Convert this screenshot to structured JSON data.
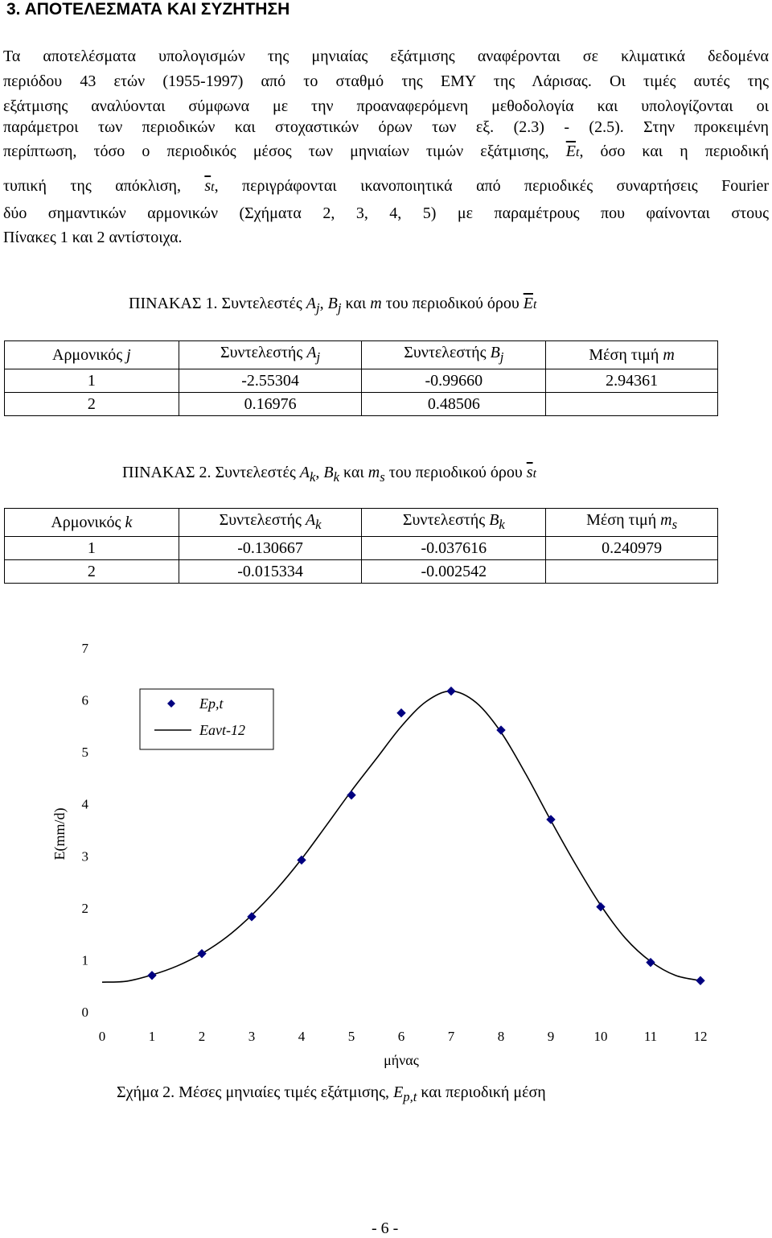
{
  "heading": "3. ΑΠΟΤΕΛΕΣΜΑΤΑ ΚΑΙ ΣΥΖΗΤΗΣΗ",
  "paragraph": {
    "line1": "Τα αποτελέσματα υπολογισμών της μηνιαίας εξάτμισης αναφέρονται σε κλιματικά δεδομένα",
    "line2": "περιόδου 43 ετών (1955-1997) από το σταθμό της ΕΜΥ της Λάρισας. Οι τιμές αυτές της",
    "line3": "εξάτμισης αναλύονται σύμφωνα με την προαναφερόμενη μεθοδολογία και υπολογίζονται οι",
    "line4": "παράμετροι των περιοδικών και στοχαστικών όρων των εξ. (2.3) - (2.5). Στην προκειμένη",
    "line5a": "περίπτωση, τόσο ο περιοδικός μέσος των μηνιαίων τιμών εξάτμισης,",
    "line5sym": "E",
    "line5sub": "t",
    "line5b": ", όσο και η περιοδική",
    "line6a": "τυπική της απόκλιση,",
    "line6sym": "s",
    "line6sub": "t",
    "line6b": ", περιγράφονται ικανοποιητικά από περιοδικές συναρτήσεις Fourier",
    "line7": "δύο σημαντικών αρμονικών (Σχήματα 2, 3, 4, 5) με παραμέτρους που φαίνονται στους",
    "line8": "Πίνακες 1 και 2 αντίστοιχα."
  },
  "table1": {
    "caption_a": "ΠΙΝΑΚΑΣ 1. Συντελεστές ",
    "caption_A": "A",
    "caption_Asub": "j",
    "caption_comma": ", ",
    "caption_B": "B",
    "caption_Bsub": "j",
    "caption_mid": " και ",
    "caption_m": "m",
    "caption_b": " του περιοδικού όρου ",
    "caption_sym": "E",
    "caption_symsub": "t",
    "headers": {
      "h1": "Αρμονικός ",
      "h1var": "j",
      "h2": "Συντελεστής ",
      "h2var": "A",
      "h2sub": "j",
      "h3": "Συντελεστής ",
      "h3var": "B",
      "h3sub": "j",
      "h4": "Μέση τιμή ",
      "h4var": "m"
    },
    "rows": [
      [
        "1",
        "-2.55304",
        "-0.99660",
        "2.94361"
      ],
      [
        "2",
        "0.16976",
        "0.48506",
        ""
      ]
    ]
  },
  "table2": {
    "caption_a": "ΠΙΝΑΚΑΣ 2. Συντελεστές ",
    "caption_A": "A",
    "caption_Asub": "k",
    "caption_comma": ", ",
    "caption_B": "B",
    "caption_Bsub": "k",
    "caption_mid": " και ",
    "caption_m": "m",
    "caption_msub": "s",
    "caption_b": " του περιοδικού όρου ",
    "caption_sym": "s",
    "caption_symsub": "t",
    "headers": {
      "h1": "Αρμονικός ",
      "h1var": "k",
      "h2": "Συντελεστής ",
      "h2var": "A",
      "h2sub": "k",
      "h3": "Συντελεστής ",
      "h3var": "B",
      "h3sub": "k",
      "h4": "Μέση τιμή ",
      "h4var": "m",
      "h4sub": "s"
    },
    "rows": [
      [
        "1",
        "-0.130667",
        "-0.037616",
        "0.240979"
      ],
      [
        "2",
        "-0.015334",
        "-0.002542",
        ""
      ]
    ]
  },
  "chart_data": {
    "type": "line",
    "xlabel": "μήνας",
    "ylabel": "E(mm/d)",
    "xlim": [
      0,
      12
    ],
    "ylim": [
      0,
      7
    ],
    "xticks": [
      "0",
      "1",
      "2",
      "3",
      "4",
      "5",
      "6",
      "7",
      "8",
      "9",
      "10",
      "11",
      "12"
    ],
    "yticks": [
      "0",
      "1",
      "2",
      "3",
      "4",
      "5",
      "6",
      "7"
    ],
    "grid": false,
    "legend_position": "top-left",
    "series": [
      {
        "name": "Ep,t",
        "kind": "markers",
        "color": "#000080",
        "x": [
          1,
          2,
          3,
          4,
          5,
          6,
          7,
          8,
          9,
          10,
          11,
          12
        ],
        "y": [
          0.7,
          1.12,
          1.83,
          2.92,
          4.17,
          5.75,
          6.17,
          5.42,
          3.7,
          2.02,
          0.95,
          0.6
        ]
      },
      {
        "name": "Eavt-12",
        "kind": "line",
        "color": "#000000",
        "x": [
          0,
          0.5,
          1,
          1.5,
          2,
          2.5,
          3,
          3.5,
          4,
          4.5,
          5,
          5.5,
          6,
          6.5,
          7,
          7.5,
          8,
          8.5,
          9,
          9.5,
          10,
          10.5,
          11,
          11.5,
          12
        ],
        "y": [
          0.57,
          0.59,
          0.71,
          0.88,
          1.12,
          1.44,
          1.86,
          2.36,
          2.94,
          3.59,
          4.25,
          4.87,
          5.49,
          5.97,
          6.17,
          5.95,
          5.38,
          4.57,
          3.68,
          2.83,
          2.05,
          1.41,
          0.97,
          0.7,
          0.6
        ]
      }
    ]
  },
  "figure_caption": {
    "a": "Σχήμα 2. Μέσες μηνιαίες τιμές εξάτμισης, ",
    "sym": "E",
    "sub": "p,t",
    "b": " και περιοδική μέση"
  },
  "page_number": "- 6 -"
}
